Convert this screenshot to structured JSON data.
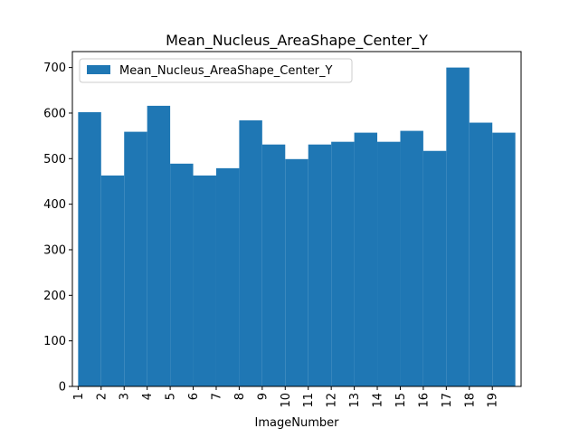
{
  "chart_data": {
    "type": "bar",
    "title": "Mean_Nucleus_AreaShape_Center_Y",
    "x_label": "ImageNumber",
    "x": [
      1,
      2,
      3,
      4,
      5,
      6,
      7,
      8,
      9,
      10,
      11,
      12,
      13,
      14,
      15,
      16,
      17,
      18,
      19
    ],
    "series": [
      {
        "name": "Mean_Nucleus_AreaShape_Center_Y",
        "color": "#1f77b4",
        "values": [
          602,
          463,
          559,
          616,
          489,
          463,
          479,
          584,
          531,
          499,
          531,
          537,
          557,
          537,
          561,
          517,
          700,
          579,
          557
        ]
      }
    ],
    "xlim": [
      0.75,
      20.25
    ],
    "xticks": [
      1,
      2,
      3,
      4,
      5,
      6,
      7,
      8,
      9,
      10,
      11,
      12,
      13,
      14,
      15,
      16,
      17,
      18,
      19
    ],
    "ylim": [
      0,
      735
    ],
    "yticks": [
      0,
      100,
      200,
      300,
      400,
      500,
      600,
      700
    ],
    "legend": "upper left",
    "grid": false
  }
}
